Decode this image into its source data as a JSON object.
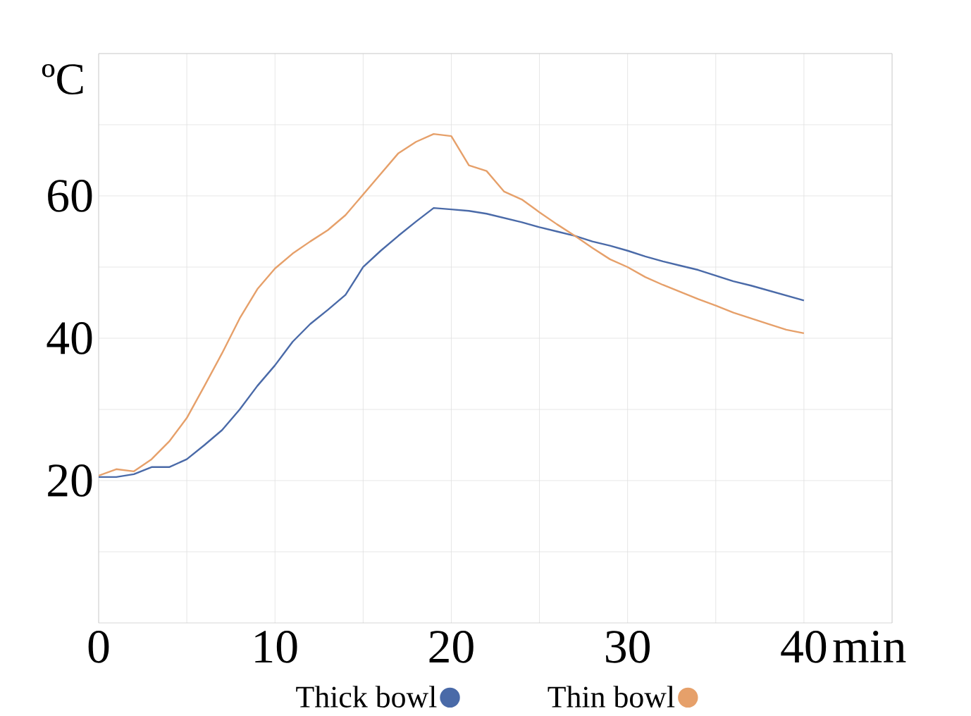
{
  "chart_data": {
    "type": "line",
    "xlabel": "min",
    "ylabel": "ºC",
    "x": [
      0,
      1,
      2,
      3,
      4,
      5,
      6,
      7,
      8,
      9,
      10,
      11,
      12,
      13,
      14,
      15,
      16,
      17,
      18,
      19,
      20,
      21,
      22,
      23,
      24,
      25,
      26,
      27,
      28,
      29,
      30,
      31,
      32,
      33,
      34,
      35,
      36,
      37,
      38,
      39,
      40
    ],
    "series": [
      {
        "name": "Thick bowl",
        "color": "#4a6aa8",
        "values": [
          20.5,
          20.5,
          20.9,
          21.9,
          21.9,
          23,
          25,
          27.1,
          30,
          33.3,
          36.2,
          39.5,
          42,
          44,
          46.1,
          50,
          52.3,
          54.4,
          56.4,
          58.3,
          58.1,
          57.9,
          57.5,
          56.9,
          56.3,
          55.6,
          55,
          54.4,
          53.6,
          53,
          52.3,
          51.5,
          50.8,
          50.2,
          49.6,
          48.8,
          48,
          47.4,
          46.7,
          46,
          45.3
        ]
      },
      {
        "name": "Thin bowl",
        "color": "#e6a06a",
        "values": [
          20.7,
          21.6,
          21.3,
          23,
          25.5,
          28.8,
          33.3,
          37.9,
          42.8,
          46.9,
          49.8,
          51.9,
          53.6,
          55.2,
          57.3,
          60.2,
          63.1,
          66,
          67.6,
          68.7,
          68.4,
          64.3,
          63.5,
          60.6,
          59.5,
          57.7,
          56,
          54.4,
          52.7,
          51.1,
          50,
          48.6,
          47.5,
          46.5,
          45.5,
          44.6,
          43.6,
          42.8,
          42,
          41.2,
          40.7
        ]
      }
    ],
    "xlim": [
      0,
      45
    ],
    "ylim": [
      0,
      80
    ],
    "xticks": [
      0,
      {
        "value": 5,
        "label": null
      },
      10,
      {
        "value": 15,
        "label": null
      },
      20,
      {
        "value": 25,
        "label": null
      },
      30,
      {
        "value": 35,
        "label": null
      },
      40,
      {
        "value": 45,
        "label": null
      }
    ],
    "yticks": [
      {
        "value": 10,
        "label": null
      },
      20,
      {
        "value": 30,
        "label": null
      },
      40,
      {
        "value": 50,
        "label": null
      },
      60,
      {
        "value": 70,
        "label": null
      },
      {
        "value": 80,
        "label": null
      }
    ],
    "grid": true,
    "legend": "bottom"
  }
}
